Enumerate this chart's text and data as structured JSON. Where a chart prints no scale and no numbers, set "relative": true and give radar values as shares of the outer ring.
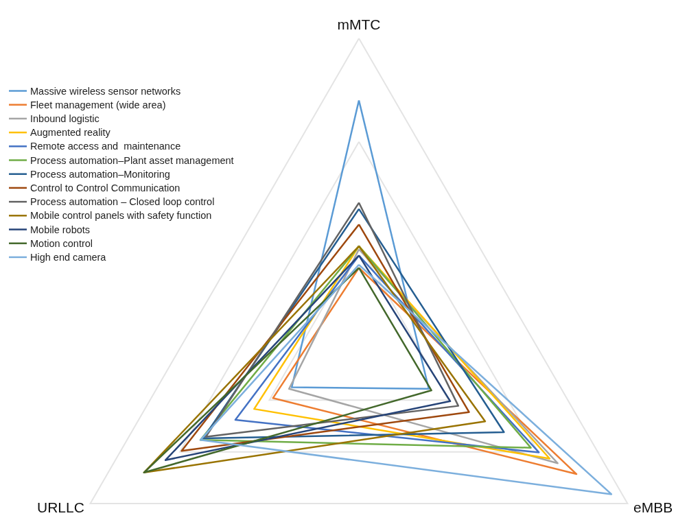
{
  "chart_data": {
    "type": "radar",
    "relative": true,
    "categories": [
      "mMTC",
      "eMBB",
      "URLLC"
    ],
    "grid": true,
    "legend": "left",
    "marker": "none",
    "line_style": "solid",
    "series": [
      {
        "name": "Massive wireless sensor networks",
        "color": "#5b9bd5",
        "values": [
          0.8,
          0.26,
          0.25
        ]
      },
      {
        "name": "Fleet management (wide area)",
        "color": "#ed7d31",
        "values": [
          0.26,
          0.81,
          0.32
        ]
      },
      {
        "name": "Inbound logistic",
        "color": "#a5a5a5",
        "values": [
          0.32,
          0.74,
          0.26
        ]
      },
      {
        "name": "Augmented reality",
        "color": "#ffc000",
        "values": [
          0.33,
          0.71,
          0.39
        ]
      },
      {
        "name": "Remote access and  maintenance",
        "color": "#4472c4",
        "values": [
          0.3,
          0.67,
          0.46
        ]
      },
      {
        "name": "Process automation–Plant asset management",
        "color": "#70ad47",
        "values": [
          0.33,
          0.64,
          0.59
        ]
      },
      {
        "name": "Process automation–Monitoring",
        "color": "#255e91",
        "values": [
          0.45,
          0.54,
          0.58
        ]
      },
      {
        "name": "Control to Control Communication",
        "color": "#9e480e",
        "values": [
          0.4,
          0.41,
          0.66
        ]
      },
      {
        "name": "Process automation – Closed loop control",
        "color": "#636363",
        "values": [
          0.47,
          0.37,
          0.57
        ]
      },
      {
        "name": "Mobile control panels with safety function",
        "color": "#997300",
        "values": [
          0.33,
          0.47,
          0.8
        ]
      },
      {
        "name": "Mobile robots",
        "color": "#264478",
        "values": [
          0.3,
          0.34,
          0.72
        ]
      },
      {
        "name": "Motion control",
        "color": "#43682b",
        "values": [
          0.26,
          0.27,
          0.8
        ]
      },
      {
        "name": "High end camera",
        "color": "#7cafdd",
        "values": [
          0.27,
          0.94,
          0.59
        ]
      }
    ]
  }
}
